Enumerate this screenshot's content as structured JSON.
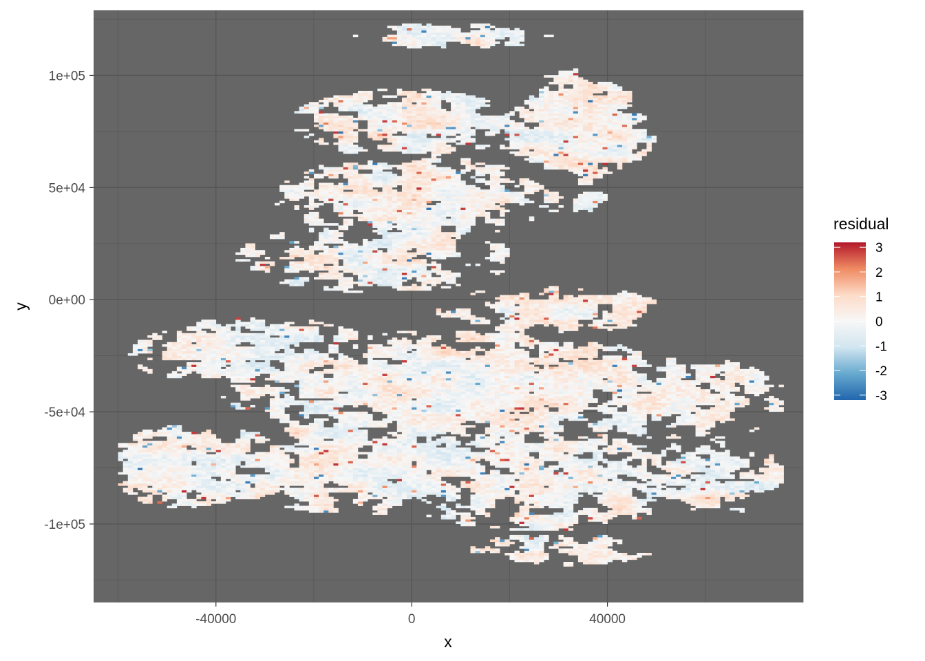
{
  "chart_data": {
    "type": "heatmap",
    "title": "",
    "xlabel": "x",
    "ylabel": "y",
    "xlim": [
      -65000,
      80000
    ],
    "ylim": [
      -135000,
      129000
    ],
    "x_ticks": [
      -40000,
      0,
      40000
    ],
    "x_tick_labels": [
      "-40000",
      "0",
      "40000"
    ],
    "y_ticks": [
      100000,
      50000,
      0,
      -50000,
      -100000
    ],
    "y_tick_labels": [
      "1e+05",
      "5e+04",
      "0e+00",
      "-5e+04",
      "-1e+05"
    ],
    "grid": true,
    "panel_background": "#666666",
    "grid_color": "#555555",
    "legend": {
      "title": "residual",
      "position": "right",
      "breaks": [
        3,
        2,
        1,
        0,
        -1,
        -2,
        -3
      ],
      "labels": [
        "3",
        "2",
        "1",
        "0",
        "-1",
        "-2",
        "-3"
      ],
      "colors": [
        "#b2182b",
        "#ef8a62",
        "#fddbc7",
        "#f7f7f7",
        "#d1e5f0",
        "#67a9cf",
        "#2166ac"
      ],
      "limits": [
        -3.2,
        3.2
      ]
    },
    "fill_variable": "residual",
    "regions": [
      {
        "cx": -2000,
        "cy": 78000,
        "rx": 20000,
        "ry": 13000,
        "weight": 0.7
      },
      {
        "cx": 33000,
        "cy": 76000,
        "rx": 14000,
        "ry": 22000,
        "weight": 0.9
      },
      {
        "cx": 8000,
        "cy": 117000,
        "rx": 17000,
        "ry": 5000,
        "weight": 0.5
      },
      {
        "cx": 0,
        "cy": 45000,
        "rx": 24000,
        "ry": 16000,
        "weight": 0.75
      },
      {
        "cx": -8000,
        "cy": 18000,
        "rx": 24000,
        "ry": 13000,
        "weight": 0.65
      },
      {
        "cx": 33000,
        "cy": 43000,
        "rx": 7000,
        "ry": 5000,
        "weight": 0.7
      },
      {
        "cx": 28000,
        "cy": -5000,
        "rx": 20000,
        "ry": 9000,
        "weight": 0.55
      },
      {
        "cx": -32000,
        "cy": -25000,
        "rx": 22000,
        "ry": 14000,
        "weight": 0.6
      },
      {
        "cx": 10000,
        "cy": -40000,
        "rx": 42000,
        "ry": 22000,
        "weight": 0.7
      },
      {
        "cx": 55000,
        "cy": -45000,
        "rx": 18000,
        "ry": 16000,
        "weight": 0.6
      },
      {
        "cx": -45000,
        "cy": -75000,
        "rx": 16000,
        "ry": 16000,
        "weight": 0.7
      },
      {
        "cx": -10000,
        "cy": -75000,
        "rx": 28000,
        "ry": 18000,
        "weight": 0.65
      },
      {
        "cx": 25000,
        "cy": -80000,
        "rx": 28000,
        "ry": 20000,
        "weight": 0.6
      },
      {
        "cx": 60000,
        "cy": -80000,
        "rx": 14000,
        "ry": 14000,
        "weight": 0.55
      },
      {
        "cx": 30000,
        "cy": -112000,
        "rx": 16000,
        "ry": 6000,
        "weight": 0.4
      }
    ]
  }
}
